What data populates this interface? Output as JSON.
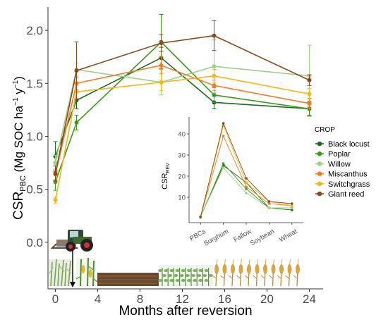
{
  "chart_data": [
    {
      "type": "line",
      "xlabel": "Months after reversion",
      "ylabel_main": "CSR",
      "ylabel_sub": "PBC",
      "ylabel_unit_open": " (Mg SOC ha",
      "ylabel_sup1": "−1",
      "ylabel_unit_mid": " y",
      "ylabel_sup2": "−1",
      "ylabel_unit_close": ")",
      "x_ticks": [
        "0",
        "4",
        "8",
        "12",
        "16",
        "20",
        "24"
      ],
      "x_tick_values": [
        0,
        4,
        8,
        12,
        16,
        20,
        24
      ],
      "y_ticks": [
        "0.0",
        "0.5",
        "1.0",
        "1.5",
        "2.0"
      ],
      "y_tick_values": [
        0,
        0.5,
        1.0,
        1.5,
        2.0
      ],
      "xlim": [
        -0.7,
        25.3
      ],
      "ylim": [
        -0.44,
        2.22
      ],
      "grid": false,
      "legend_title": "CROP",
      "legend_position": "right",
      "x": [
        0,
        2,
        10,
        15,
        24
      ],
      "series": [
        {
          "name": "Black locust",
          "color": "#1d6b1d",
          "values": [
            0.81,
            1.34,
            1.74,
            1.32,
            1.26
          ],
          "err": [
            0.14,
            0.08,
            0.1,
            0.06,
            0.06
          ]
        },
        {
          "name": "Poplar",
          "color": "#3b9a1e",
          "values": [
            0.57,
            1.13,
            1.89,
            1.39,
            1.26
          ],
          "err": [
            0.08,
            0.07,
            0.26,
            0.07,
            0.07
          ]
        },
        {
          "name": "Willow",
          "color": "#9fd08a",
          "values": [
            0.75,
            1.63,
            1.51,
            1.66,
            1.57
          ],
          "err": [
            0.07,
            0.06,
            0.12,
            0.25,
            0.29
          ]
        },
        {
          "name": "Miscanthus",
          "color": "#f07c28",
          "values": [
            0.64,
            1.5,
            1.67,
            1.48,
            1.31
          ],
          "err": [
            0.05,
            0.06,
            0.08,
            0.05,
            0.05
          ]
        },
        {
          "name": "Switchgrass",
          "color": "#f5b716",
          "values": [
            0.4,
            1.42,
            1.51,
            1.57,
            1.4
          ],
          "err": [
            0.03,
            0.06,
            0.08,
            0.06,
            0.05
          ]
        },
        {
          "name": "Giant reed",
          "color": "#8a4a1c",
          "values": [
            0.65,
            1.62,
            1.88,
            1.95,
            1.53
          ],
          "err": [
            0.07,
            0.27,
            0.08,
            0.14,
            0.05
          ]
        }
      ]
    },
    {
      "type": "line",
      "ylabel_main": "CSR",
      "ylabel_sub": "REV",
      "categories": [
        "PBCs",
        "Sorghum",
        "Fallow",
        "Soybean",
        "Wheat"
      ],
      "y_ticks": [
        "10",
        "20",
        "30",
        "40"
      ],
      "y_tick_values": [
        10,
        20,
        30,
        40
      ],
      "ylim": [
        -2,
        48
      ],
      "grid": false,
      "series": [
        {
          "name": "Black locust",
          "color": "#1d6b1d",
          "values": [
            0.8,
            25,
            17,
            5,
            4
          ]
        },
        {
          "name": "Poplar",
          "color": "#3b9a1e",
          "values": [
            0.6,
            26,
            14,
            5,
            5
          ]
        },
        {
          "name": "Willow",
          "color": "#9fd08a",
          "values": [
            0.8,
            24,
            12,
            5,
            5
          ]
        },
        {
          "name": "Miscanthus",
          "color": "#f07c28",
          "values": [
            0.6,
            39,
            15,
            7,
            6
          ]
        },
        {
          "name": "Switchgrass",
          "color": "#f5b716",
          "values": [
            0.4,
            44,
            17,
            8,
            6
          ]
        },
        {
          "name": "Giant reed",
          "color": "#8a4a1c",
          "values": [
            0.7,
            45,
            19,
            8,
            7
          ]
        }
      ]
    }
  ],
  "icons": {
    "tractor": "tractor-icon",
    "crops": [
      "grass-crop-icon",
      "corn-crop-icon",
      "bare-soil-icon",
      "soybean-crop-icon",
      "wheat-crop-icon"
    ]
  }
}
